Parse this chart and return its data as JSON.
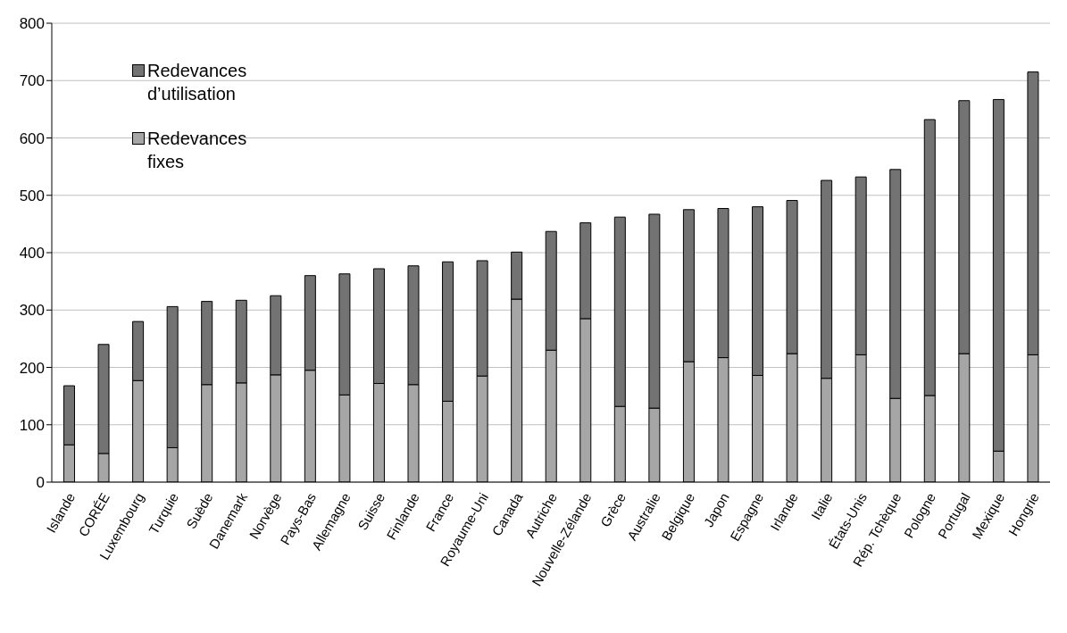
{
  "chart_data": {
    "type": "bar",
    "stacked": true,
    "categories": [
      "Islande",
      "CORÉE",
      "Luxembourg",
      "Turquie",
      "Suède",
      "Danemark",
      "Norvège",
      "Pays-Bas",
      "Allemagne",
      "Suisse",
      "Finlande",
      "France",
      "Royaume-Uni",
      "Canada",
      "Autriche",
      "Nouvelle-Zélande",
      "Grèce",
      "Australie",
      "Belgique",
      "Japon",
      "Espagne",
      "Irlande",
      "Italie",
      "États-Unis",
      "Rép. Tchèque",
      "Pologne",
      "Portugal",
      "Mexique",
      "Hongrie"
    ],
    "series": [
      {
        "name": "Redevances fixes",
        "color": "#a6a6a6",
        "values": [
          65,
          50,
          177,
          60,
          170,
          173,
          187,
          195,
          152,
          172,
          170,
          141,
          185,
          319,
          230,
          285,
          132,
          129,
          210,
          217,
          186,
          224,
          181,
          222,
          146,
          151,
          224,
          54,
          222
        ]
      },
      {
        "name": "Redevances d’utilisation",
        "color": "#737373",
        "values": [
          103,
          190,
          103,
          246,
          145,
          144,
          138,
          165,
          211,
          200,
          207,
          243,
          201,
          82,
          207,
          167,
          330,
          338,
          265,
          260,
          294,
          267,
          345,
          310,
          399,
          481,
          441,
          613,
          493
        ]
      }
    ],
    "ylim": [
      0,
      800
    ],
    "yticks": [
      0,
      100,
      200,
      300,
      400,
      500,
      600,
      700,
      800
    ],
    "grid": "y",
    "legend": "top left"
  }
}
